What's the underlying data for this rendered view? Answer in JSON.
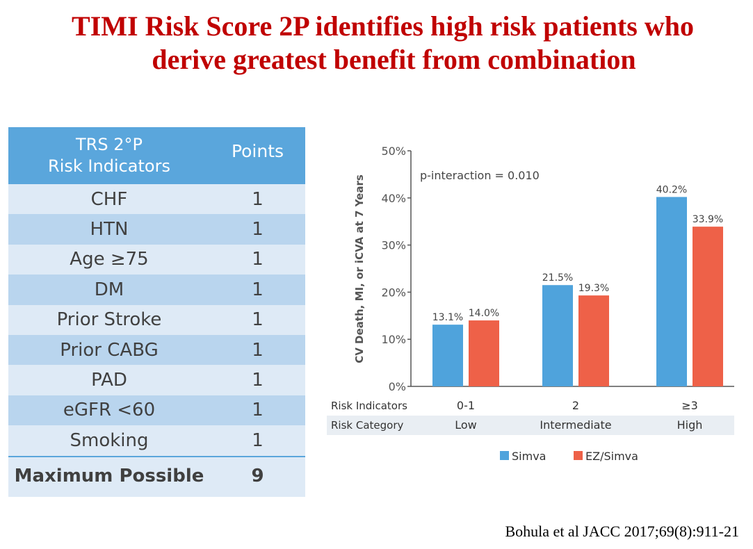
{
  "slide": {
    "title_line1": "TIMI Risk Score 2P identifies high risk patients who",
    "title_line2": "derive greatest benefit from combination",
    "citation": "Bohula et al JACC 2017;69(8):911-21"
  },
  "table": {
    "header_indicator_line1": "TRS 2°P",
    "header_indicator_line2": "Risk Indicators",
    "header_points": "Points",
    "rows": [
      {
        "indicator": "CHF",
        "points": "1"
      },
      {
        "indicator": "HTN",
        "points": "1"
      },
      {
        "indicator": "Age ≥75",
        "points": "1"
      },
      {
        "indicator": "DM",
        "points": "1"
      },
      {
        "indicator": "Prior Stroke",
        "points": "1"
      },
      {
        "indicator": "Prior CABG",
        "points": "1"
      },
      {
        "indicator": "PAD",
        "points": "1"
      },
      {
        "indicator": "eGFR <60",
        "points": "1"
      },
      {
        "indicator": "Smoking",
        "points": "1"
      }
    ],
    "total_label": "Maximum Possible",
    "total_points": "9"
  },
  "chart_data": {
    "type": "bar",
    "title": "",
    "ylabel": "CV Death, MI, or iCVA at 7 Years",
    "ylim": [
      0,
      50
    ],
    "yticks": [
      "0%",
      "10%",
      "20%",
      "30%",
      "40%",
      "50%"
    ],
    "annotation": "p-interaction = 0.010",
    "row_labels": {
      "indicators": "Risk Indicators",
      "category": "Risk Category"
    },
    "categories": [
      "0-1",
      "2",
      "≥3"
    ],
    "category_names": [
      "Low",
      "Intermediate",
      "High"
    ],
    "series": [
      {
        "name": "Simva",
        "color": "#4fa3dc",
        "values": [
          13.1,
          21.5,
          40.2
        ],
        "labels": [
          "13.1%",
          "21.5%",
          "40.2%"
        ]
      },
      {
        "name": "EZ/Simva",
        "color": "#ee6148",
        "values": [
          14.0,
          19.3,
          33.9
        ],
        "labels": [
          "14.0%",
          "19.3%",
          "33.9%"
        ]
      }
    ],
    "legend_position": "bottom",
    "grid": false
  }
}
